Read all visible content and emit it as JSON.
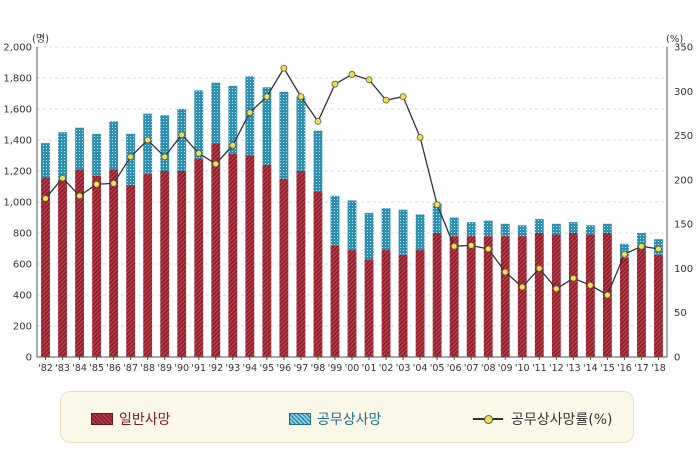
{
  "chart_data": {
    "type": "bar",
    "y_unit_left": "(명)",
    "y_unit_right": "(%)",
    "ylim_left": [
      0,
      2000
    ],
    "yticks_left": [
      "0",
      "200",
      "400",
      "600",
      "800",
      "1,000",
      "1,200",
      "1,400",
      "1,600",
      "1,800",
      "2,000"
    ],
    "ylim_right": [
      0,
      350
    ],
    "yticks_right": [
      "0",
      "50",
      "100",
      "150",
      "200",
      "250",
      "300",
      "350"
    ],
    "categories": [
      "'82",
      "'83",
      "'84",
      "'85",
      "'86",
      "'87",
      "'88",
      "'89",
      "'90",
      "'91",
      "'92",
      "'93",
      "'94",
      "'95",
      "'96",
      "'97",
      "'98",
      "'99",
      "'00",
      "'01",
      "'02",
      "'03",
      "'04",
      "'05",
      "'06",
      "'07",
      "'08",
      "'09",
      "'10",
      "'11",
      "'12",
      "'13",
      "'14",
      "'15",
      "'16",
      "'17",
      "'18"
    ],
    "series": [
      {
        "name": "일반사망",
        "kind": "stacked-bar",
        "color": "#8e1f2c",
        "values": [
          1160,
          1140,
          1210,
          1170,
          1210,
          1110,
          1180,
          1200,
          1200,
          1280,
          1380,
          1310,
          1300,
          1240,
          1150,
          1200,
          1070,
          720,
          690,
          630,
          690,
          660,
          690,
          800,
          780,
          780,
          780,
          780,
          780,
          800,
          790,
          800,
          790,
          800,
          640,
          700,
          660
        ]
      },
      {
        "name": "공무상사망",
        "kind": "stacked-bar",
        "color": "#2f8fb0",
        "values": [
          220,
          310,
          270,
          270,
          310,
          330,
          390,
          360,
          400,
          440,
          390,
          440,
          510,
          500,
          560,
          480,
          390,
          320,
          320,
          300,
          270,
          290,
          230,
          190,
          120,
          90,
          100,
          80,
          70,
          90,
          70,
          70,
          60,
          60,
          90,
          100,
          100
        ]
      },
      {
        "name": "공무상사망률(%)",
        "kind": "line",
        "axis": "right",
        "color": "#333333",
        "values": [
          179,
          202,
          182,
          195,
          196,
          226,
          245,
          226,
          251,
          230,
          218,
          239,
          276,
          294,
          326,
          294,
          266,
          308,
          319,
          313,
          290,
          294,
          248,
          172,
          125,
          126,
          122,
          96,
          79,
          100,
          77,
          89,
          81,
          70,
          116,
          125,
          122
        ]
      }
    ],
    "grid": true,
    "legend_position": "bottom"
  }
}
